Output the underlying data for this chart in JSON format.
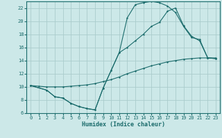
{
  "xlabel": "Humidex (Indice chaleur)",
  "bg_color": "#cce8e8",
  "grid_color": "#aacccc",
  "line_color": "#1a6b6b",
  "xlim": [
    -0.5,
    23.5
  ],
  "ylim": [
    6,
    23
  ],
  "xticks": [
    0,
    1,
    2,
    3,
    4,
    5,
    6,
    7,
    8,
    9,
    10,
    11,
    12,
    13,
    14,
    15,
    16,
    17,
    18,
    19,
    20,
    21,
    22,
    23
  ],
  "yticks": [
    6,
    8,
    10,
    12,
    14,
    16,
    18,
    20,
    22
  ],
  "line1_x": [
    0,
    1,
    2,
    3,
    4,
    5,
    6,
    7,
    8,
    9,
    10,
    11,
    12,
    13,
    14,
    15,
    16,
    17,
    18,
    19,
    20,
    21,
    22,
    23
  ],
  "line1_y": [
    10.2,
    10.1,
    10.0,
    10.0,
    10.0,
    10.1,
    10.2,
    10.3,
    10.5,
    10.8,
    11.1,
    11.5,
    12.0,
    12.4,
    12.8,
    13.2,
    13.5,
    13.8,
    14.0,
    14.2,
    14.3,
    14.4,
    14.4,
    14.4
  ],
  "line2_x": [
    0,
    2,
    3,
    4,
    5,
    6,
    7,
    8,
    9,
    10,
    11,
    12,
    13,
    14,
    15,
    16,
    17,
    18,
    19,
    20,
    21,
    22,
    23
  ],
  "line2_y": [
    10.2,
    9.5,
    8.5,
    8.3,
    7.5,
    7.0,
    6.7,
    6.5,
    9.8,
    12.5,
    15.2,
    20.5,
    22.5,
    22.8,
    23.0,
    22.8,
    22.3,
    21.3,
    19.2,
    17.5,
    17.2,
    14.4,
    14.3
  ],
  "line3_x": [
    0,
    2,
    3,
    4,
    5,
    6,
    7,
    8,
    9,
    10,
    11,
    12,
    13,
    14,
    15,
    16,
    17,
    18,
    19,
    20,
    21,
    22,
    23
  ],
  "line3_y": [
    10.2,
    9.5,
    8.5,
    8.3,
    7.5,
    7.0,
    6.7,
    6.5,
    9.8,
    12.5,
    15.2,
    16.0,
    17.0,
    18.0,
    19.2,
    19.8,
    21.5,
    22.0,
    19.3,
    17.7,
    17.0,
    14.4,
    14.3
  ]
}
